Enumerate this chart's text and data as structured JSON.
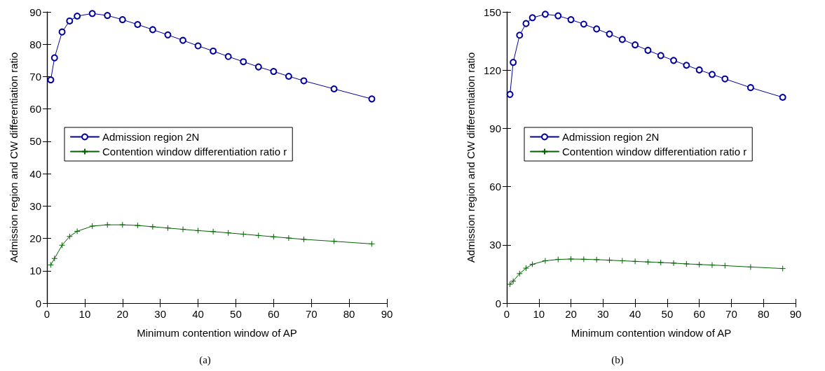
{
  "chart_data": [
    {
      "type": "line",
      "xlabel": "Minimum contention window of AP",
      "ylabel": "Admission region and CW differentiation ratio",
      "annotations": [
        "(a)"
      ],
      "x": [
        1,
        2,
        4,
        6,
        8,
        12,
        16,
        20,
        24,
        28,
        32,
        36,
        40,
        44,
        48,
        52,
        56,
        60,
        64,
        68,
        76,
        86
      ],
      "xlim": [
        0,
        90
      ],
      "xticks": [
        0,
        10,
        20,
        30,
        40,
        50,
        60,
        70,
        80,
        90
      ],
      "ylim": [
        0,
        90
      ],
      "yticks": [
        0,
        10,
        20,
        30,
        40,
        50,
        60,
        70,
        80,
        90
      ],
      "grid": false,
      "legend": "center left",
      "line_style": "solid",
      "series": [
        {
          "name": "Admission region 2N",
          "color": "#0000a0",
          "marker": "circle",
          "values": [
            69,
            75.8,
            83.8,
            87.2,
            88.7,
            89.5,
            88.9,
            87.6,
            86.1,
            84.5,
            82.9,
            81.2,
            79.5,
            77.9,
            76.2,
            74.6,
            73.0,
            71.6,
            70.1,
            68.7,
            66.2,
            63.1
          ]
        },
        {
          "name": "Contention window differentiation ratio r",
          "color": "#006400",
          "marker": "cross",
          "values": [
            11.8,
            13.8,
            17.9,
            20.6,
            22.2,
            23.8,
            24.2,
            24.2,
            24.0,
            23.6,
            23.2,
            22.8,
            22.4,
            22.1,
            21.7,
            21.3,
            20.9,
            20.5,
            20.1,
            19.7,
            19.1,
            18.3
          ]
        }
      ]
    },
    {
      "type": "line",
      "xlabel": "Minimum contention window of AP",
      "ylabel": "Admission region and CW differentiation ratio",
      "annotations": [
        "(b)"
      ],
      "x": [
        1,
        2,
        4,
        6,
        8,
        12,
        16,
        20,
        24,
        28,
        32,
        36,
        40,
        44,
        48,
        52,
        56,
        60,
        64,
        68,
        76,
        86
      ],
      "xlim": [
        0,
        90
      ],
      "xticks": [
        0,
        10,
        20,
        30,
        40,
        50,
        60,
        70,
        80,
        90
      ],
      "ylim": [
        0,
        150
      ],
      "yticks": [
        0,
        30,
        60,
        90,
        120,
        150
      ],
      "grid": false,
      "legend": "center left",
      "line_style": "solid",
      "series": [
        {
          "name": "Admission region 2N",
          "color": "#0000a0",
          "marker": "circle",
          "values": [
            107.5,
            124,
            138,
            144,
            147,
            148.8,
            148,
            146,
            143.7,
            141.2,
            138.6,
            135.8,
            133,
            130.2,
            127.5,
            125,
            122.5,
            120.1,
            117.8,
            115.5,
            111,
            106
          ]
        },
        {
          "name": "Contention window differentiation ratio r",
          "color": "#006400",
          "marker": "cross",
          "values": [
            9.7,
            11.3,
            15.2,
            18,
            20,
            21.8,
            22.5,
            22.7,
            22.6,
            22.4,
            22.1,
            21.8,
            21.5,
            21.2,
            20.9,
            20.6,
            20.2,
            19.9,
            19.6,
            19.3,
            18.6,
            17.8
          ]
        }
      ]
    }
  ]
}
